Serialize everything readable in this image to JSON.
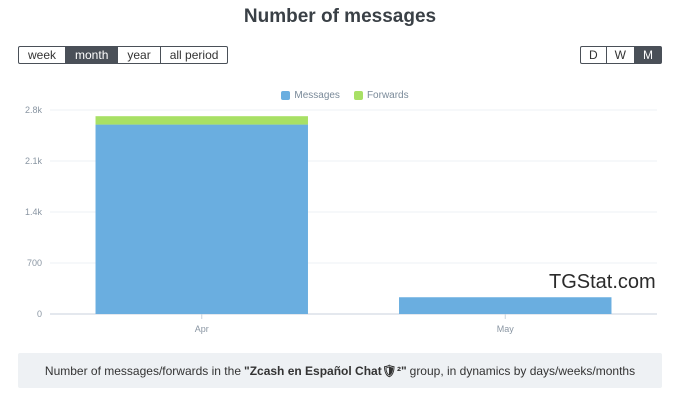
{
  "page": {
    "title": "Number of messages"
  },
  "period_buttons": [
    {
      "label": "week",
      "active": false
    },
    {
      "label": "month",
      "active": true
    },
    {
      "label": "year",
      "active": false
    },
    {
      "label": "all period",
      "active": false
    }
  ],
  "granularity_buttons": [
    {
      "label": "D",
      "active": false
    },
    {
      "label": "W",
      "active": false
    },
    {
      "label": "M",
      "active": true
    }
  ],
  "legend": [
    {
      "label": "Messages",
      "color": "#6aaee0"
    },
    {
      "label": "Forwards",
      "color": "#a8e065"
    }
  ],
  "watermark": "TGStat.com",
  "caption": {
    "before": "Number of messages/forwards in the",
    "group": "\"Zcash en Español Chat🛡²\"",
    "after": "group, in dynamics by days/weeks/months"
  },
  "chart_data": {
    "type": "bar",
    "stacked": true,
    "categories": [
      "Apr",
      "May"
    ],
    "series": [
      {
        "name": "Messages",
        "values": [
          2600,
          230
        ]
      },
      {
        "name": "Forwards",
        "values": [
          115,
          0
        ]
      }
    ],
    "ylim": [
      0,
      2800
    ],
    "yticks": [
      0,
      700,
      1400,
      2100,
      2800
    ],
    "ytick_labels": [
      "0",
      "700",
      "1.4k",
      "2.1k",
      "2.8k"
    ],
    "grid": true,
    "legend_position": "top-center"
  }
}
